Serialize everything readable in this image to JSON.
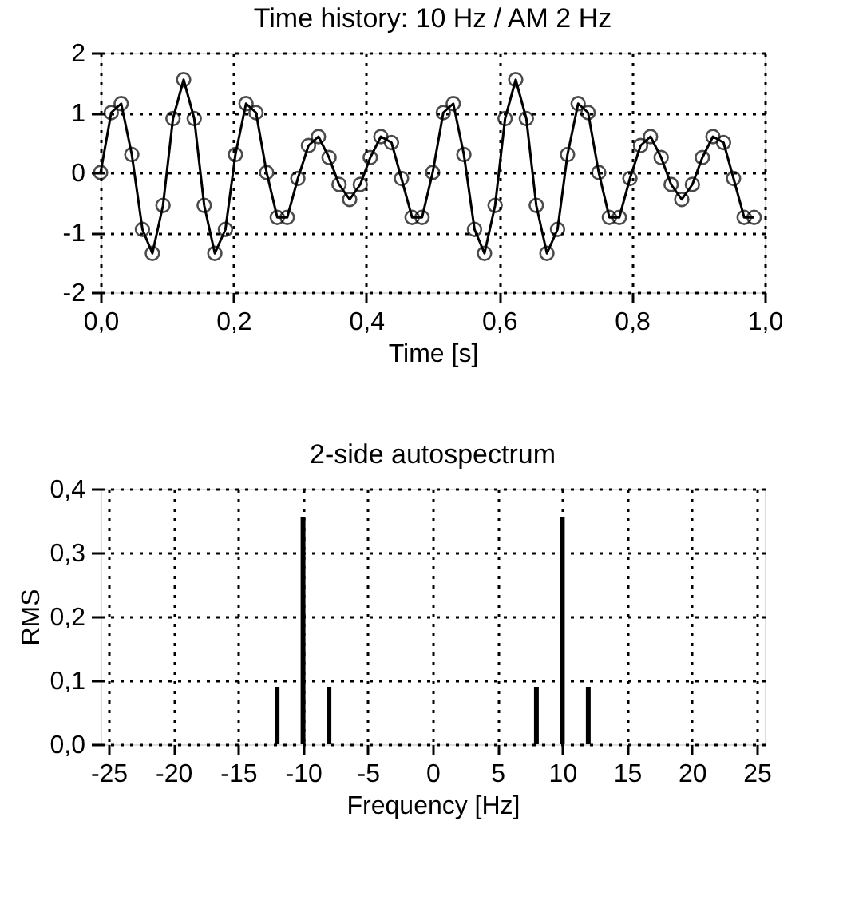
{
  "chart_data": [
    {
      "type": "line",
      "title": "Time history: 10 Hz / AM 2 Hz",
      "xlabel": "Time [s]",
      "x": [
        0,
        0.016,
        0.031,
        0.047,
        0.063,
        0.078,
        0.094,
        0.109,
        0.125,
        0.141,
        0.156,
        0.172,
        0.188,
        0.203,
        0.219,
        0.234,
        0.25,
        0.266,
        0.281,
        0.297,
        0.313,
        0.328,
        0.344,
        0.359,
        0.375,
        0.391,
        0.406,
        0.422,
        0.438,
        0.453,
        0.469,
        0.484,
        0.5,
        0.516,
        0.531,
        0.547,
        0.563,
        0.578,
        0.594,
        0.609,
        0.625,
        0.641,
        0.656,
        0.672,
        0.688,
        0.703,
        0.719,
        0.734,
        0.75,
        0.766,
        0.781,
        0.797,
        0.813,
        0.828,
        0.844,
        0.859,
        0.875,
        0.891,
        0.906,
        0.922,
        0.938,
        0.953,
        0.969,
        0.984
      ],
      "series": [
        {
          "color": "#000000",
          "values": [
            0,
            1.0,
            1.15,
            0.3,
            -0.95,
            -1.35,
            -0.55,
            0.9,
            1.55,
            0.9,
            -0.55,
            -1.35,
            -0.95,
            0.3,
            1.15,
            1.0,
            0.0,
            -0.75,
            -0.75,
            -0.1,
            0.45,
            0.6,
            0.25,
            -0.2,
            -0.45,
            -0.2,
            0.25,
            0.6,
            0.5,
            -0.1,
            -0.75,
            -0.75,
            0.0,
            1.0,
            1.15,
            0.3,
            -0.95,
            -1.35,
            -0.55,
            0.9,
            1.55,
            0.9,
            -0.55,
            -1.35,
            -0.95,
            0.3,
            1.15,
            1.0,
            0.0,
            -0.75,
            -0.75,
            -0.1,
            0.45,
            0.6,
            0.25,
            -0.2,
            -0.45,
            -0.2,
            0.25,
            0.6,
            0.5,
            -0.1,
            -0.75,
            -0.75
          ]
        }
      ],
      "xlim": [
        0,
        1
      ],
      "xticks": [
        {
          "value": 0,
          "label": "0,0"
        },
        {
          "value": 0.2,
          "label": "0,2"
        },
        {
          "value": 0.4,
          "label": "0,4"
        },
        {
          "value": 0.6,
          "label": "0,6"
        },
        {
          "value": 0.8,
          "label": "0,8"
        },
        {
          "value": 1,
          "label": "1,0"
        }
      ],
      "ylim": [
        -2,
        2
      ],
      "yticks": [
        -2,
        -1,
        0,
        1,
        2
      ],
      "grid": true,
      "marker": "circle",
      "line_style": "solid"
    },
    {
      "type": "bar",
      "title": "2-side autospectrum",
      "xlabel": "Frequency [Hz]",
      "ylabel": "RMS",
      "x": [
        -12,
        -10,
        -8,
        8,
        10,
        12
      ],
      "series": [
        {
          "color": "#000000",
          "values": [
            0.09,
            0.355,
            0.09,
            0.09,
            0.355,
            0.09
          ]
        }
      ],
      "xlim": [
        -25,
        25
      ],
      "xticks": [
        -25,
        -20,
        -15,
        -10,
        -5,
        0,
        5,
        10,
        15,
        20,
        25
      ],
      "ylim": [
        0,
        0.4
      ],
      "yticks": [
        {
          "value": 0,
          "label": "0,0"
        },
        {
          "value": 0.1,
          "label": "0,1"
        },
        {
          "value": 0.2,
          "label": "0,2"
        },
        {
          "value": 0.3,
          "label": "0,3"
        },
        {
          "value": 0.4,
          "label": "0,4"
        }
      ],
      "grid": true
    }
  ]
}
